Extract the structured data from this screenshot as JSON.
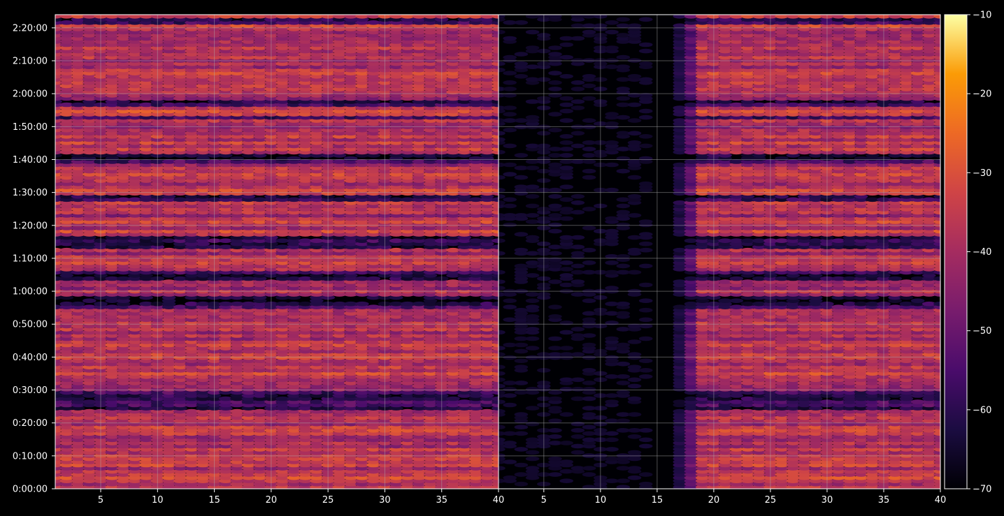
{
  "chart_data": [
    {
      "type": "heatmap",
      "panel": "left",
      "xlim": [
        1,
        40
      ],
      "ylim": [
        0,
        8640
      ],
      "x_ticks": [
        5,
        10,
        15,
        20,
        25,
        30,
        35,
        40
      ],
      "x_tick_labels": [
        "5",
        "10",
        "15",
        "20",
        "25",
        "30",
        "35",
        "40"
      ],
      "y_ticks": [
        0,
        600,
        1200,
        1800,
        2400,
        3000,
        3600,
        4200,
        4800,
        5400,
        6000,
        6600,
        7200,
        7800,
        8400
      ],
      "y_tick_labels": [
        "0:00:00",
        "0:10:00",
        "0:20:00",
        "0:30:00",
        "0:40:00",
        "0:50:00",
        "1:00:00",
        "1:10:00",
        "1:20:00",
        "1:30:00",
        "1:40:00",
        "1:50:00",
        "2:00:00",
        "2:10:00",
        "2:20:00"
      ],
      "grid": true,
      "colormap": "inferno",
      "value_range": [
        -70,
        -10
      ],
      "quiet_bands": [
        [
          1440,
          1800
        ],
        [
          3300,
          3540
        ],
        [
          3780,
          3960
        ],
        [
          4380,
          4620
        ],
        [
          5220,
          5340
        ],
        [
          5940,
          6120
        ],
        [
          6720,
          6780
        ],
        [
          6960,
          7080
        ],
        [
          8460,
          8580
        ]
      ],
      "typical_level_dB": -38,
      "peak_level_dB": -22
    },
    {
      "type": "heatmap",
      "panel": "right",
      "xlim": [
        1,
        40
      ],
      "ylim": [
        0,
        8640
      ],
      "x_ticks": [
        5,
        10,
        15,
        20,
        25,
        30,
        35,
        40
      ],
      "x_tick_labels": [
        "5",
        "10",
        "15",
        "20",
        "25",
        "30",
        "35",
        "40"
      ],
      "grid": true,
      "colormap": "inferno",
      "value_range": [
        -70,
        -10
      ],
      "silent_x_range": [
        1,
        15
      ],
      "transition_x_range": [
        15,
        19
      ],
      "quiet_bands": [
        [
          1440,
          1800
        ],
        [
          3300,
          3540
        ],
        [
          3780,
          3960
        ],
        [
          4380,
          4620
        ],
        [
          5220,
          5340
        ],
        [
          5940,
          6120
        ],
        [
          6720,
          6780
        ],
        [
          6960,
          7080
        ],
        [
          8460,
          8580
        ]
      ],
      "typical_level_dB": -38,
      "peak_level_dB": -22
    }
  ],
  "colorbar": {
    "colormap": "inferno",
    "min": -70,
    "max": -10,
    "ticks": [
      -10,
      -20,
      -30,
      -40,
      -50,
      -60,
      -70
    ],
    "tick_labels": [
      "−10",
      "−20",
      "−30",
      "−40",
      "−50",
      "−60",
      "−70"
    ]
  },
  "colors": {
    "background": "#000000",
    "axes": "#ffffff",
    "grid": "#b0b0b0"
  }
}
